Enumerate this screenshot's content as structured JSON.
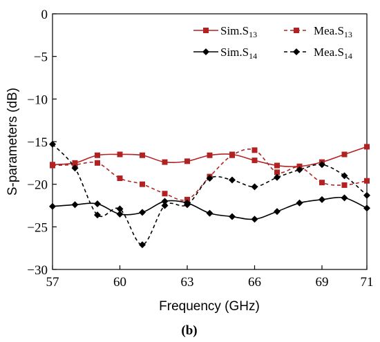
{
  "chart_data": {
    "type": "line",
    "x_label": "Frequency (GHz)",
    "y_label": "S-parameters (dB)",
    "caption": "(b)",
    "xlim": [
      57,
      71
    ],
    "ylim": [
      -30,
      0
    ],
    "x_ticks": [
      57,
      60,
      63,
      66,
      69,
      71
    ],
    "y_ticks": [
      0,
      -5,
      -10,
      -15,
      -20,
      -25,
      -30
    ],
    "y_tick_labels": [
      "0",
      "−5",
      "−10",
      "−15",
      "−20",
      "−25",
      "−30"
    ],
    "legend_position": "top-right",
    "x": [
      57,
      58,
      59,
      60,
      61,
      62,
      63,
      64,
      65,
      66,
      67,
      68,
      69,
      70,
      71
    ],
    "series": [
      {
        "name": "Sim.S",
        "subscript": "13",
        "color": "#b22222",
        "dashed": false,
        "marker": "square",
        "values": [
          -17.7,
          -17.5,
          -16.6,
          -16.5,
          -16.6,
          -17.4,
          -17.3,
          -16.6,
          -16.5,
          -17.2,
          -17.8,
          -17.9,
          -17.4,
          -16.5,
          -15.6
        ]
      },
      {
        "name": "Mea.S",
        "subscript": "13",
        "color": "#b22222",
        "dashed": true,
        "marker": "square",
        "values": [
          -17.8,
          -17.7,
          -17.5,
          -19.3,
          -20.0,
          -21.1,
          -21.8,
          -19.1,
          -16.6,
          -16.0,
          -18.6,
          -18.0,
          -19.8,
          -20.1,
          -19.6
        ]
      },
      {
        "name": "Sim.S",
        "subscript": "14",
        "color": "#000000",
        "dashed": false,
        "marker": "diamond",
        "values": [
          -22.6,
          -22.4,
          -22.3,
          -23.5,
          -23.3,
          -22.0,
          -22.2,
          -23.4,
          -23.8,
          -24.1,
          -23.2,
          -22.2,
          -21.8,
          -21.6,
          -22.8
        ]
      },
      {
        "name": "Mea.S",
        "subscript": "14",
        "color": "#000000",
        "dashed": true,
        "marker": "diamond",
        "values": [
          -15.3,
          -18.1,
          -23.6,
          -22.9,
          -27.1,
          -22.5,
          -22.4,
          -19.3,
          -19.5,
          -20.3,
          -19.2,
          -18.3,
          -17.7,
          -19.0,
          -21.3
        ]
      }
    ]
  }
}
